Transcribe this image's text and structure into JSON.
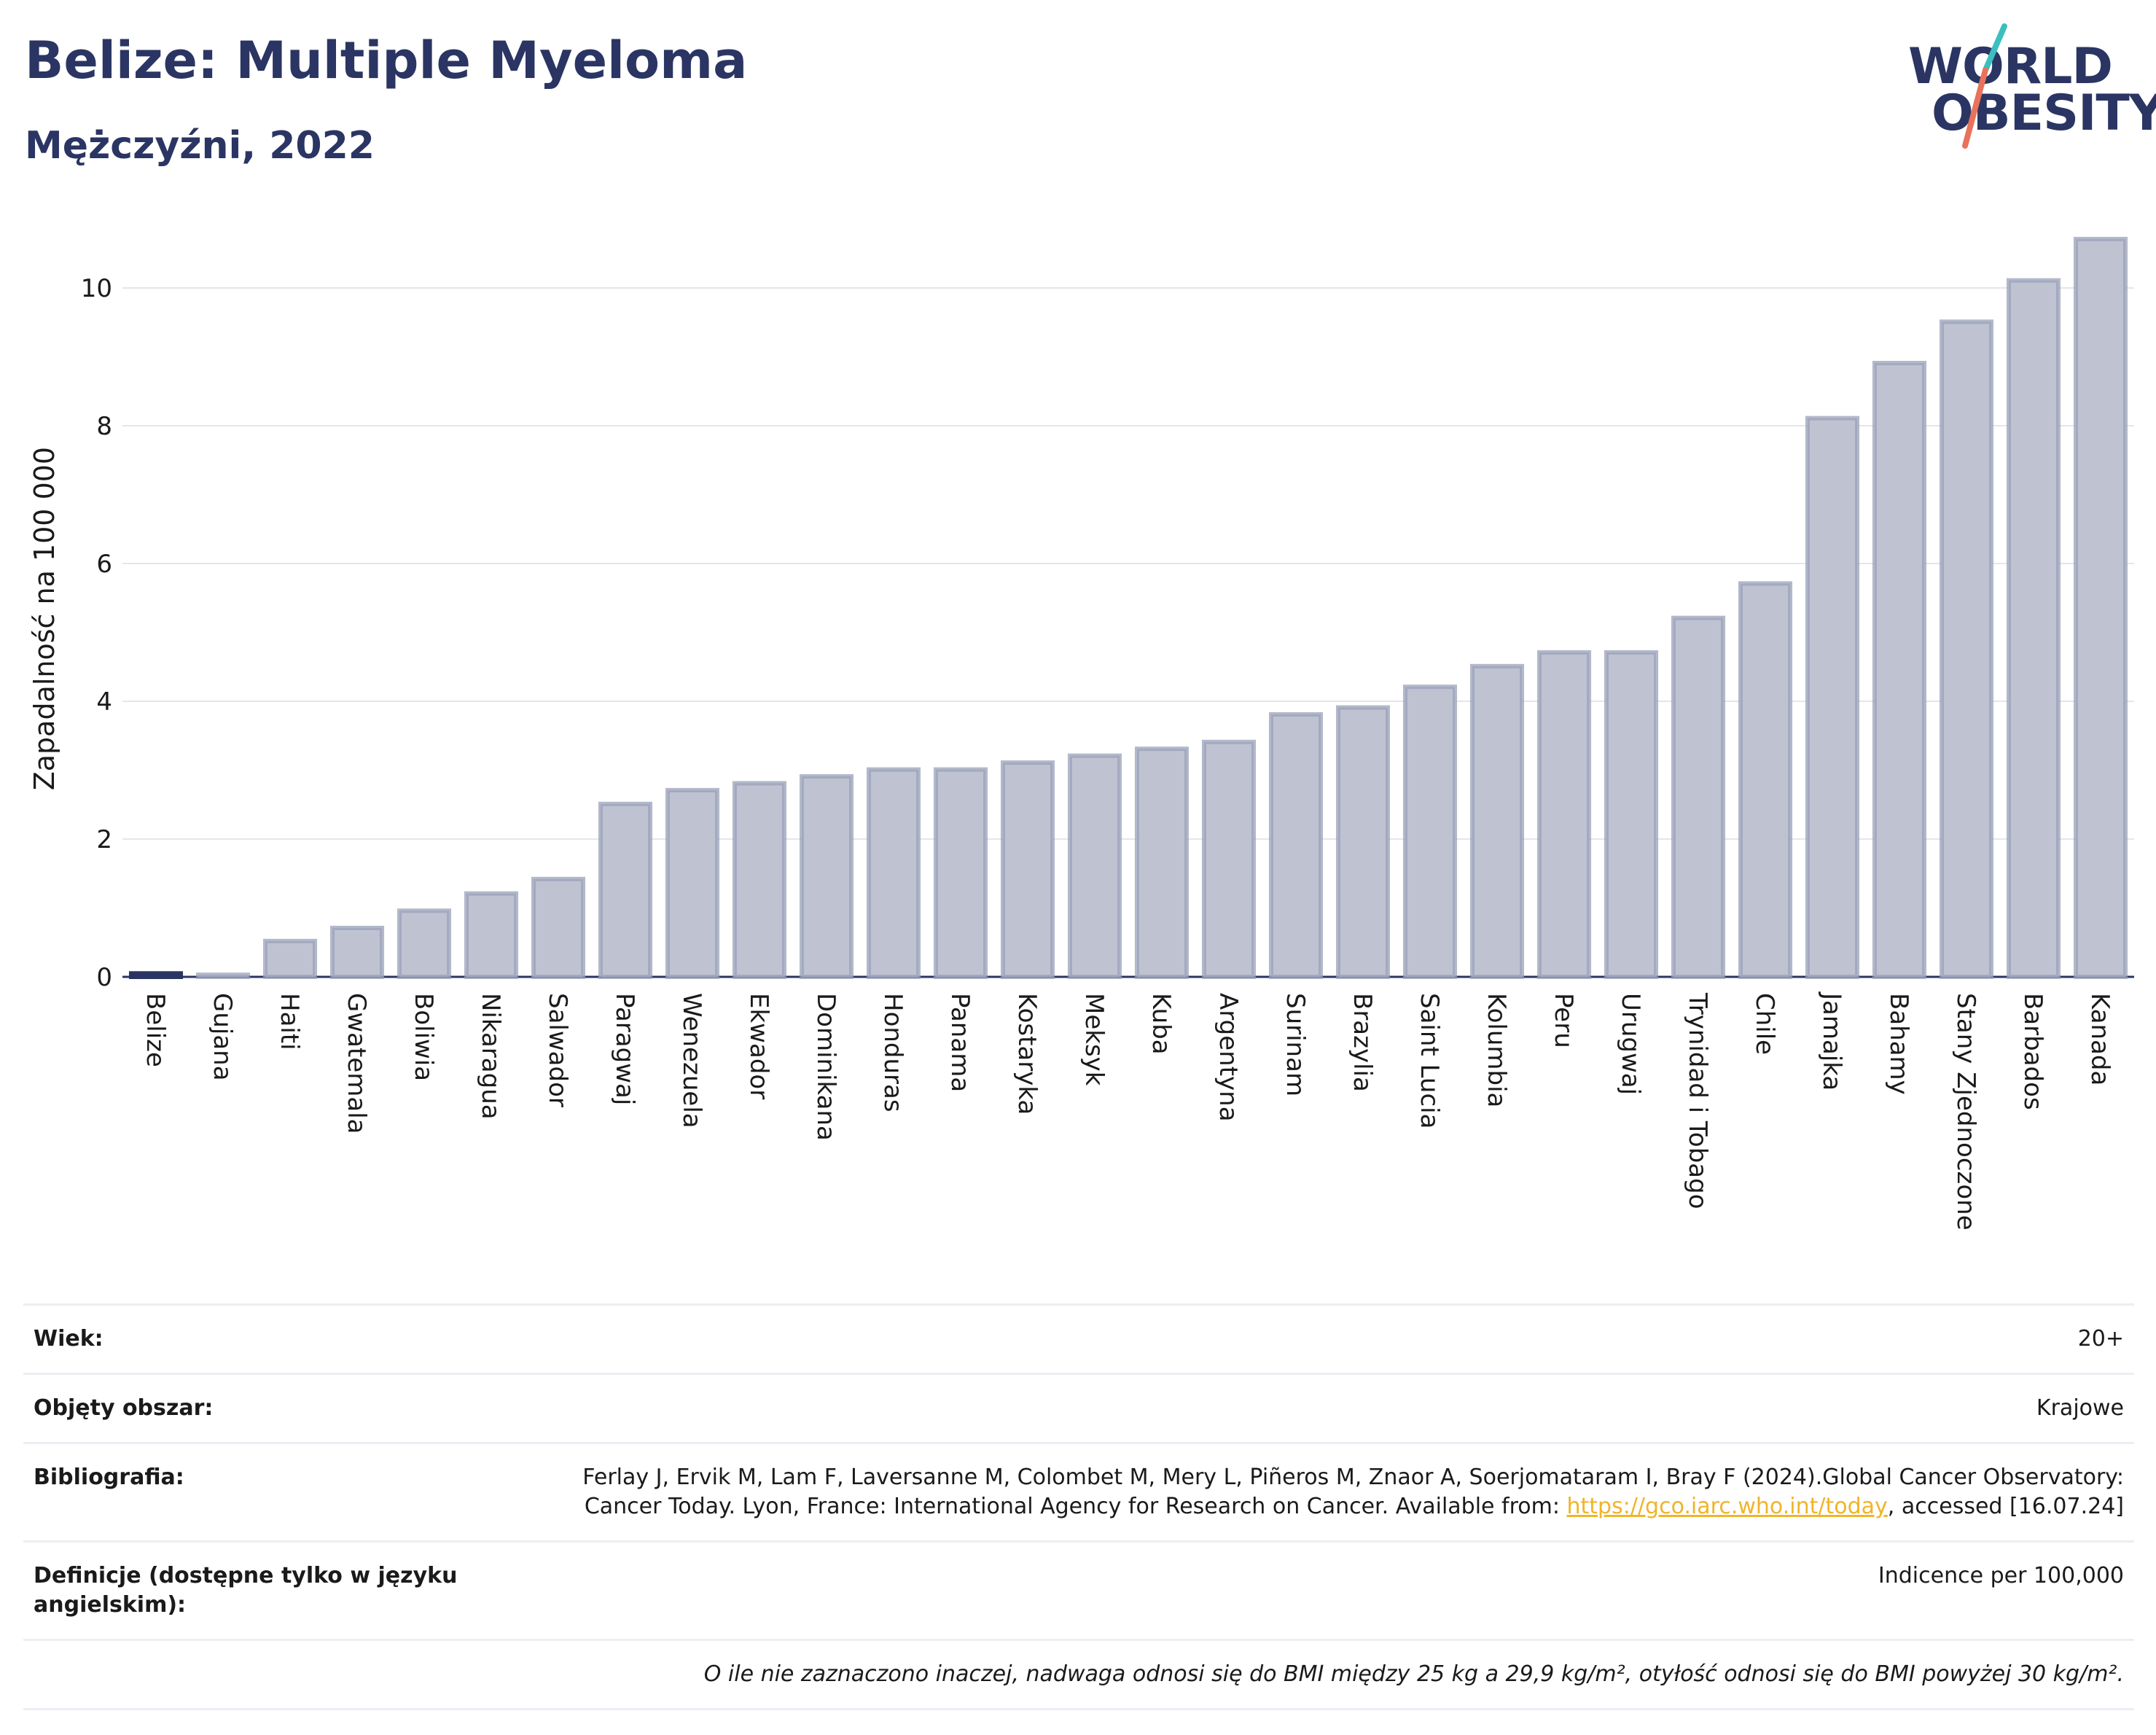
{
  "header": {
    "title": "Belize: Multiple Myeloma",
    "subtitle": "Mężczyźni, 2022",
    "logo_line1": "WORLD",
    "logo_line2": "OBESITY"
  },
  "colors": {
    "highlight": "#2b3563",
    "bar_fill": "#bfc3d1",
    "bar_stroke": "#9aa0b8",
    "title": "#2b3563",
    "logo_slash_top": "#3cbfbf",
    "logo_slash_bottom": "#e8735a",
    "link": "#f0b429"
  },
  "chart_data": {
    "type": "bar",
    "title": "Belize: Multiple Myeloma",
    "subtitle": "Mężczyźni, 2022",
    "xlabel": "",
    "ylabel": "Zapadalność na 100 000",
    "ylim": [
      0,
      11
    ],
    "yticks": [
      0,
      2,
      4,
      6,
      8,
      10
    ],
    "grid": true,
    "highlight_category": "Belize",
    "categories": [
      "Belize",
      "Gujana",
      "Haiti",
      "Gwatemala",
      "Boliwia",
      "Nikaragua",
      "Salwador",
      "Paragwaj",
      "Wenezuela",
      "Ekwador",
      "Dominikana",
      "Honduras",
      "Panama",
      "Kostaryka",
      "Meksyk",
      "Kuba",
      "Argentyna",
      "Surinam",
      "Brazylia",
      "Saint Lucia",
      "Kolumbia",
      "Peru",
      "Urugwaj",
      "Trynidad i Tobago",
      "Chile",
      "Jamajka",
      "Bahamy",
      "Stany Zjednoczone",
      "Barbados",
      "Kanada"
    ],
    "values": [
      0.05,
      0.03,
      0.52,
      0.71,
      0.96,
      1.21,
      1.42,
      2.51,
      2.71,
      2.81,
      2.91,
      3.01,
      3.01,
      3.11,
      3.21,
      3.31,
      3.41,
      3.81,
      3.91,
      4.21,
      4.51,
      4.71,
      4.71,
      5.21,
      5.71,
      8.11,
      8.91,
      9.51,
      10.11,
      10.71
    ]
  },
  "info_table": {
    "rows": [
      {
        "key": "Wiek:",
        "value": "20+"
      },
      {
        "key": "Objęty obszar:",
        "value": "Krajowe"
      },
      {
        "key": "Bibliografia:",
        "value_pre": "Ferlay J, Ervik M, Lam F, Laversanne M, Colombet M, Mery L, Piñeros M, Znaor A, Soerjomataram I, Bray F (2024).Global Cancer Observatory: Cancer Today. Lyon, France: International Agency for Research on Cancer. Available from: ",
        "link": "https://gco.iarc.who.int/today",
        "value_post": ", accessed [16.07.24]"
      },
      {
        "key": "Definicje (dostępne tylko w języku angielskim):",
        "value": "Indicence per 100,000"
      }
    ],
    "note": "O ile nie zaznaczono inaczej, nadwaga odnosi się do BMI między 25 kg a 29,9 kg/m², otyłość odnosi się do BMI powyżej 30 kg/m²."
  }
}
